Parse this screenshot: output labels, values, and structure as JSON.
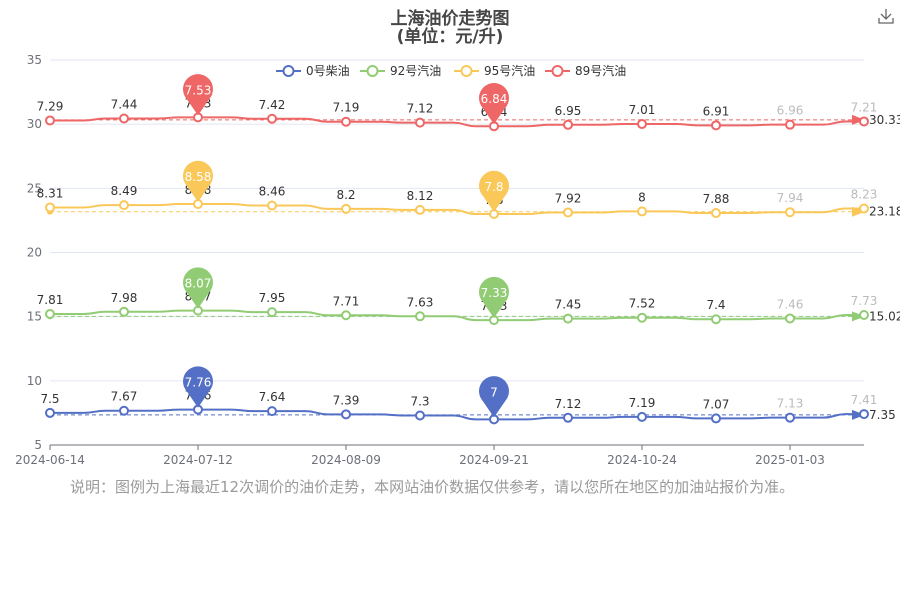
{
  "header": {
    "title_line1": "上海油价走势图",
    "title_line2": "(单位：元/升)"
  },
  "toolbar": {
    "download_icon": "download-icon"
  },
  "note": "说明：图例为上海最近12次调价的油价走势，本网站油价数据仅供参考，请以您所在地区的加油站报价为准。",
  "chart_data": {
    "type": "line",
    "title": "上海油价走势图",
    "subtitle": "(单位：元/升)",
    "x_tick_labels": [
      "2024-06-14",
      "2024-07-12",
      "2024-08-09",
      "2024-09-21",
      "2024-10-24",
      "2025-01-03"
    ],
    "y_ticks": [
      5,
      10,
      15,
      20,
      25,
      30,
      35
    ],
    "ylim": [
      5,
      35
    ],
    "legend_position": "top",
    "series": [
      {
        "name": "0号柴油",
        "color": "#5470c6",
        "offset": 0,
        "values": [
          7.5,
          7.67,
          7.76,
          7.64,
          7.39,
          7.3,
          7,
          7.12,
          7.19,
          7.07,
          7.13,
          7.41
        ],
        "max_label": "7.76",
        "min_label": "7",
        "mark_line": "7.35"
      },
      {
        "name": "92号汽油",
        "color": "#91cc75",
        "offset": 7.4,
        "values": [
          7.81,
          7.98,
          8.07,
          7.95,
          7.71,
          7.63,
          7.33,
          7.45,
          7.52,
          7.4,
          7.46,
          7.73
        ],
        "max_label": "8.07",
        "min_label": "7.33",
        "mark_line": "15.02"
      },
      {
        "name": "95号汽油",
        "color": "#fac858",
        "offset": 15.2,
        "values": [
          8.31,
          8.49,
          8.58,
          8.46,
          8.2,
          8.12,
          7.8,
          7.92,
          8,
          7.88,
          7.94,
          8.23
        ],
        "max_label": "8.58",
        "min_label": "7.8",
        "mark_line": "23.18"
      },
      {
        "name": "89号汽油",
        "color": "#ee6666",
        "offset": 23.0,
        "values": [
          7.29,
          7.44,
          7.53,
          7.42,
          7.19,
          7.12,
          6.84,
          6.95,
          7.01,
          6.91,
          6.96,
          7.21
        ],
        "max_label": "7.53",
        "min_label": "6.84",
        "mark_line": "30.33"
      }
    ]
  }
}
